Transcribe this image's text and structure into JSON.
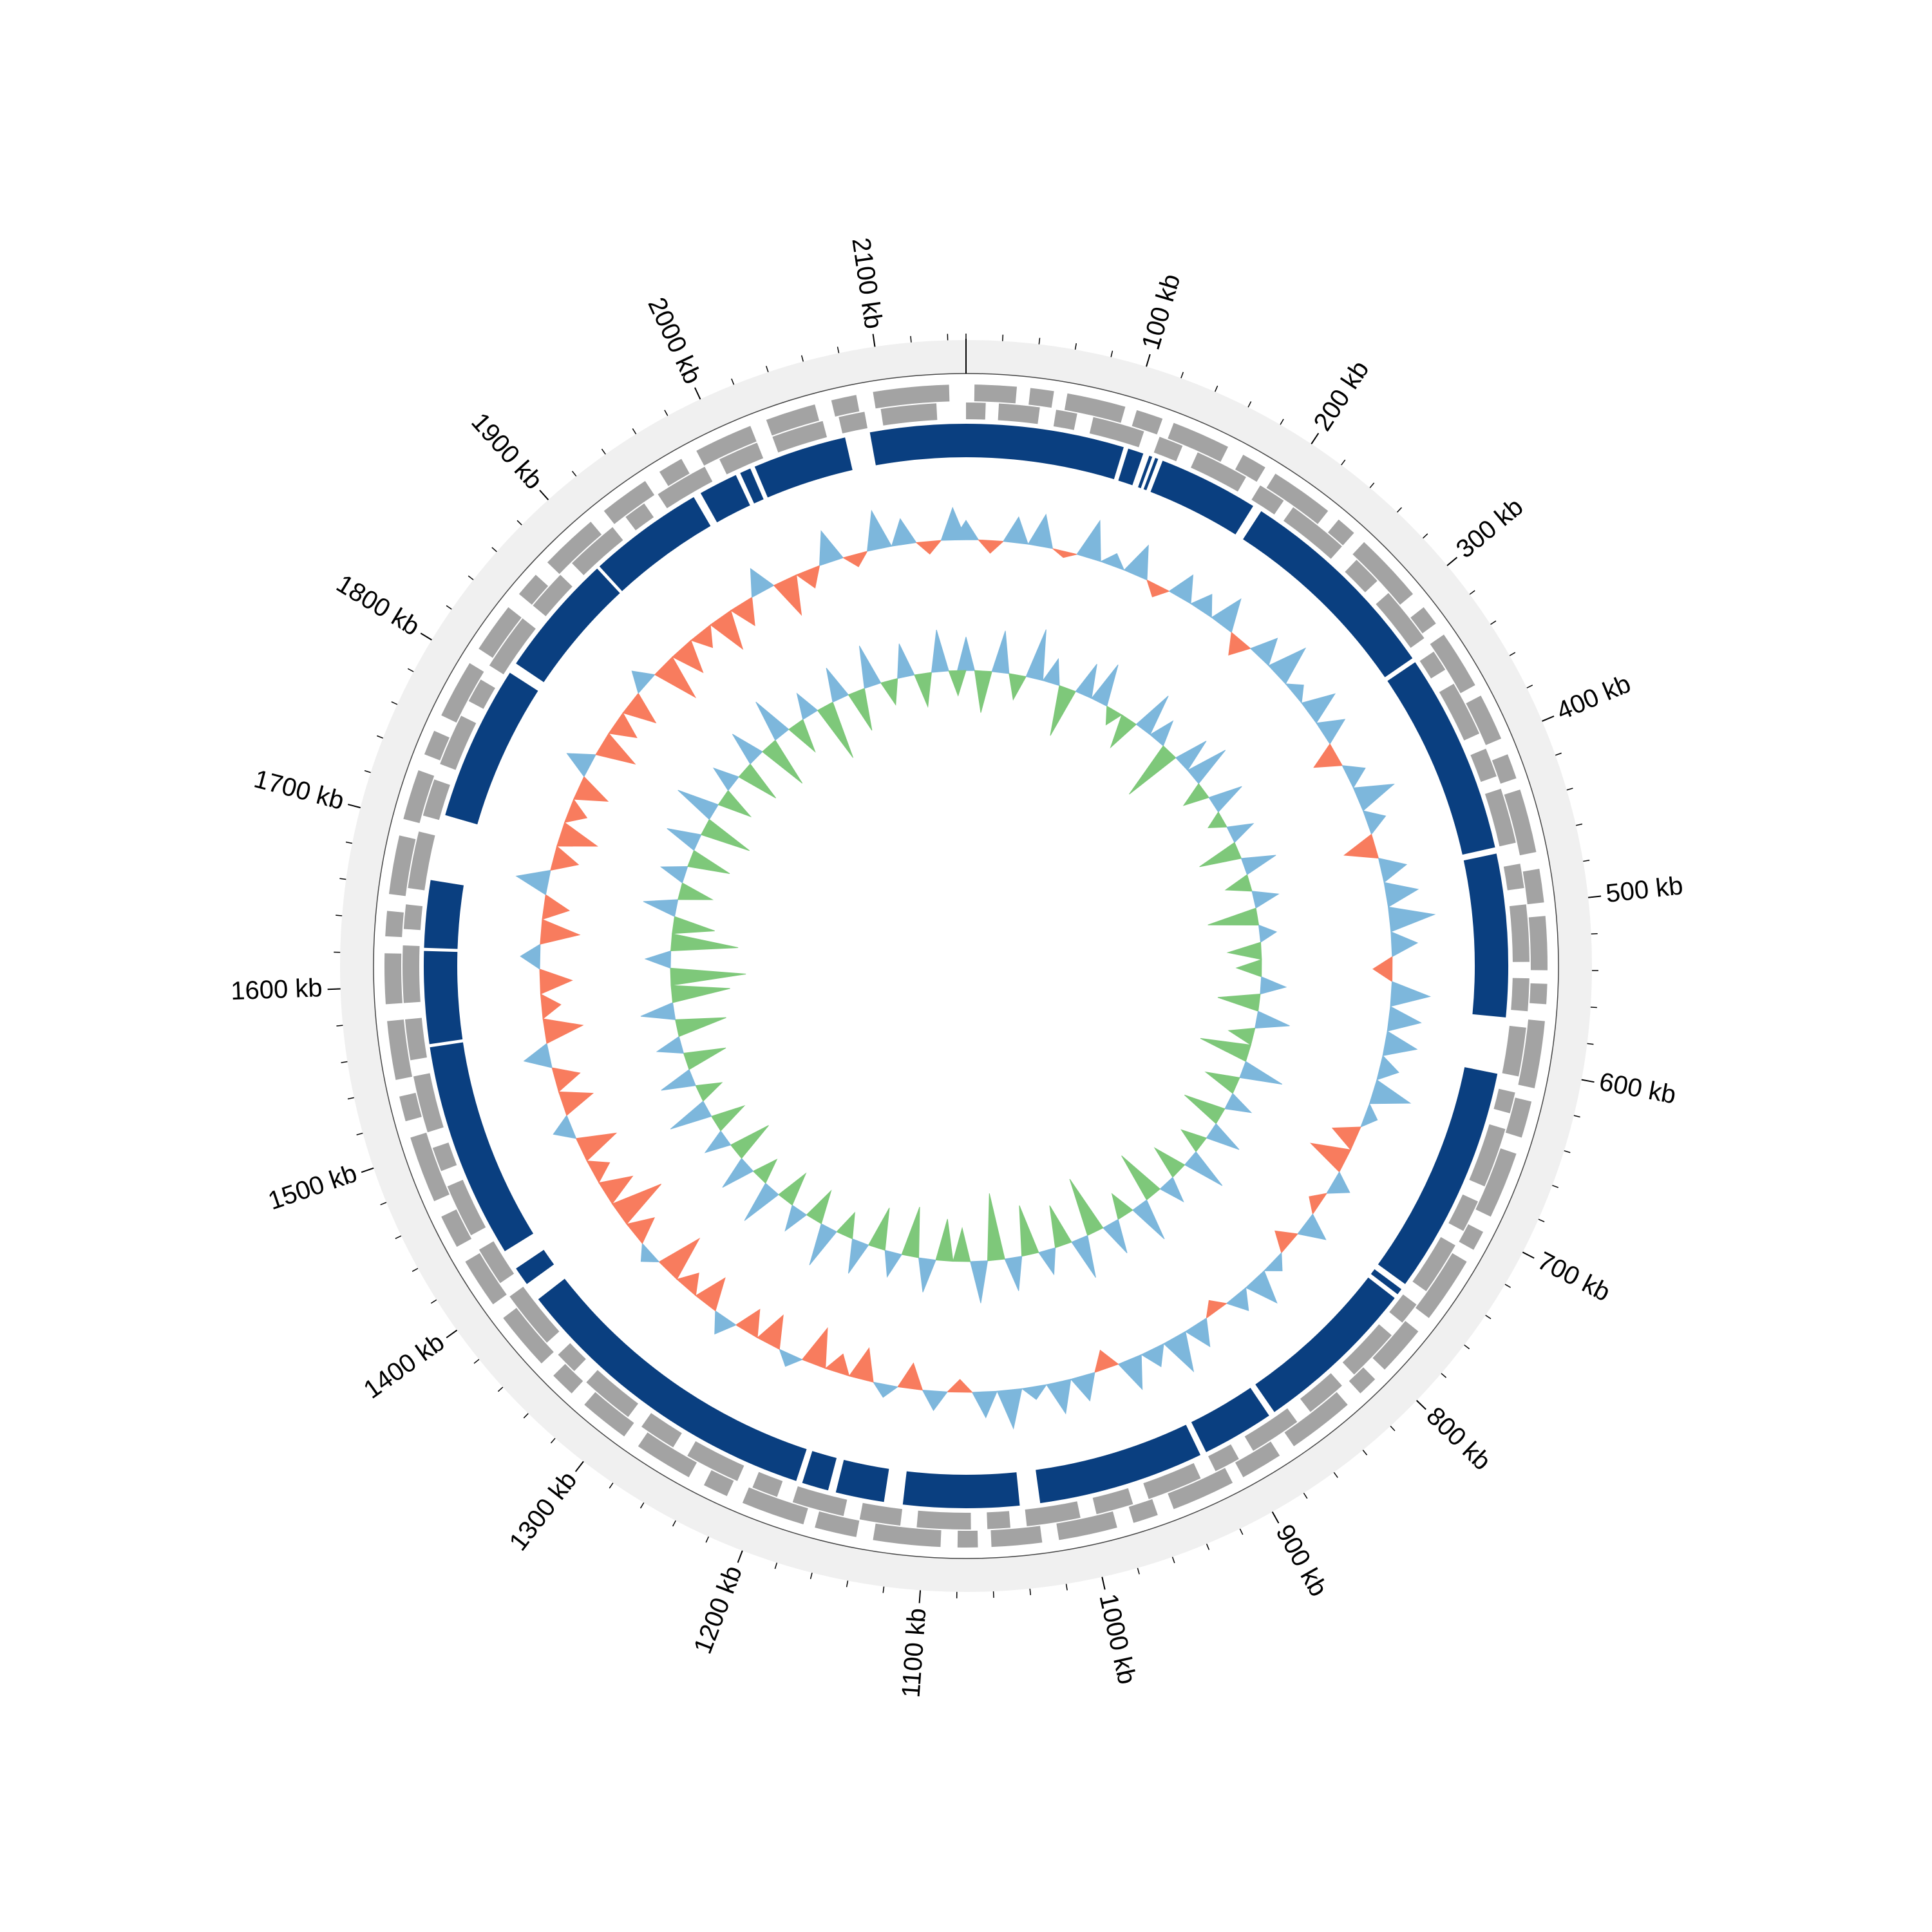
{
  "chart_data": {
    "type": "circular-genome",
    "xlim": [
      0,
      2150
    ],
    "xticks": [
      {
        "value": 100,
        "label": "100 kb"
      },
      {
        "value": 200,
        "label": "200 kb"
      },
      {
        "value": 300,
        "label": "300 kb"
      },
      {
        "value": 400,
        "label": "400 kb"
      },
      {
        "value": 500,
        "label": "500 kb"
      },
      {
        "value": 600,
        "label": "600 kb"
      },
      {
        "value": 700,
        "label": "700 kb"
      },
      {
        "value": 800,
        "label": "800 kb"
      },
      {
        "value": 900,
        "label": "900 kb"
      },
      {
        "value": 1000,
        "label": "1000 kb"
      },
      {
        "value": 1100,
        "label": "1100 kb"
      },
      {
        "value": 1200,
        "label": "1200 kb"
      },
      {
        "value": 1300,
        "label": "1300 kb"
      },
      {
        "value": 1400,
        "label": "1400 kb"
      },
      {
        "value": 1500,
        "label": "1500 kb"
      },
      {
        "value": 1600,
        "label": "1600 kb"
      },
      {
        "value": 1700,
        "label": "1700 kb"
      },
      {
        "value": 1800,
        "label": "1800 kb"
      },
      {
        "value": 1900,
        "label": "1900 kb"
      },
      {
        "value": 2000,
        "label": "2000 kb"
      },
      {
        "value": 2100,
        "label": "2100 kb"
      }
    ],
    "minor_xticks": [
      0,
      20,
      40,
      60,
      80,
      100,
      120,
      140,
      160,
      180,
      200,
      220,
      240,
      260,
      280,
      300,
      320,
      340,
      360,
      380,
      400,
      420,
      440,
      460,
      480,
      500,
      520,
      540,
      560,
      580,
      600,
      620,
      640,
      660,
      680,
      700,
      720,
      740,
      760,
      780,
      800,
      820,
      840,
      860,
      880,
      900,
      920,
      940,
      960,
      980,
      1000,
      1020,
      1040,
      1060,
      1080,
      1100,
      1120,
      1140,
      1160,
      1180,
      1200,
      1220,
      1240,
      1260,
      1280,
      1300,
      1320,
      1340,
      1360,
      1380,
      1400,
      1420,
      1440,
      1460,
      1480,
      1500,
      1520,
      1540,
      1560,
      1580,
      1600,
      1620,
      1640,
      1660,
      1680,
      1700,
      1720,
      1740,
      1760,
      1780,
      1800,
      1820,
      1840,
      1860,
      1880,
      1900,
      1920,
      1940,
      1960,
      1980,
      2000,
      2020,
      2040,
      2060,
      2080,
      2100,
      2120,
      2140
    ],
    "x": [
      0,
      20,
      40,
      60,
      80,
      100,
      120,
      140,
      160,
      180,
      200,
      220,
      240,
      260,
      280,
      300,
      320,
      340,
      360,
      380,
      400,
      420,
      440,
      460,
      480,
      500,
      520,
      540,
      560,
      580,
      600,
      620,
      640,
      660,
      680,
      700,
      720,
      740,
      760,
      780,
      800,
      820,
      840,
      860,
      880,
      900,
      920,
      940,
      960,
      980,
      1000,
      1020,
      1040,
      1060,
      1080,
      1100,
      1120,
      1140,
      1160,
      1180,
      1200,
      1220,
      1240,
      1260,
      1280,
      1300,
      1320,
      1340,
      1360,
      1380,
      1400,
      1420,
      1440,
      1460,
      1480,
      1500,
      1520,
      1540,
      1560,
      1580,
      1600,
      1620,
      1640,
      1660,
      1680,
      1700,
      1720,
      1740,
      1760,
      1780,
      1800,
      1820,
      1840,
      1860,
      1880,
      1900,
      1920,
      1940,
      1960,
      1980,
      2000,
      2020,
      2040,
      2060,
      2080,
      2100,
      2120,
      2140
    ],
    "tracks": {
      "forward_genes": {
        "color": "#a3a3a3",
        "features": [
          [
            5,
            30
          ],
          [
            38,
            52
          ],
          [
            60,
            95
          ],
          [
            102,
            118
          ],
          [
            125,
            160
          ],
          [
            170,
            185
          ],
          [
            192,
            230
          ],
          [
            238,
            250
          ],
          [
            258,
            300
          ],
          [
            310,
            322
          ],
          [
            330,
            365
          ],
          [
            372,
            400
          ],
          [
            410,
            425
          ],
          [
            432,
            470
          ],
          [
            480,
            500
          ],
          [
            508,
            540
          ],
          [
            548,
            560
          ],
          [
            570,
            610
          ],
          [
            618,
            640
          ],
          [
            650,
            690
          ],
          [
            700,
            712
          ],
          [
            720,
            760
          ],
          [
            770,
            800
          ],
          [
            808,
            820
          ],
          [
            830,
            870
          ],
          [
            880,
            905
          ],
          [
            912,
            950
          ],
          [
            960,
            975
          ],
          [
            985,
            1020
          ],
          [
            1030,
            1060
          ],
          [
            1068,
            1080
          ],
          [
            1090,
            1130
          ],
          [
            1140,
            1165
          ],
          [
            1172,
            1210
          ],
          [
            1220,
            1235
          ],
          [
            1245,
            1280
          ],
          [
            1290,
            1320
          ],
          [
            1330,
            1345
          ],
          [
            1355,
            1390
          ],
          [
            1400,
            1430
          ],
          [
            1440,
            1460
          ],
          [
            1470,
            1510
          ],
          [
            1520,
            1535
          ],
          [
            1545,
            1580
          ],
          [
            1590,
            1620
          ],
          [
            1630,
            1645
          ],
          [
            1655,
            1690
          ],
          [
            1700,
            1730
          ],
          [
            1740,
            1755
          ],
          [
            1765,
            1800
          ],
          [
            1810,
            1840
          ],
          [
            1850,
            1865
          ],
          [
            1875,
            1910
          ],
          [
            1920,
            1950
          ],
          [
            1960,
            1975
          ],
          [
            1985,
            2020
          ],
          [
            2030,
            2060
          ],
          [
            2070,
            2085
          ],
          [
            2095,
            2140
          ]
        ]
      },
      "reverse_genes": {
        "color": "#a3a3a3",
        "features": [
          [
            0,
            12
          ],
          [
            20,
            45
          ],
          [
            55,
            68
          ],
          [
            78,
            110
          ],
          [
            120,
            135
          ],
          [
            145,
            178
          ],
          [
            188,
            205
          ],
          [
            212,
            250
          ],
          [
            262,
            280
          ],
          [
            290,
            325
          ],
          [
            335,
            348
          ],
          [
            358,
            392
          ],
          [
            402,
            420
          ],
          [
            428,
            462
          ],
          [
            475,
            490
          ],
          [
            500,
            535
          ],
          [
            545,
            565
          ],
          [
            575,
            605
          ],
          [
            615,
            628
          ],
          [
            638,
            675
          ],
          [
            685,
            705
          ],
          [
            715,
            748
          ],
          [
            758,
            772
          ],
          [
            782,
            815
          ],
          [
            825,
            850
          ],
          [
            860,
            892
          ],
          [
            902,
            918
          ],
          [
            928,
            962
          ],
          [
            972,
            995
          ],
          [
            1005,
            1038
          ],
          [
            1048,
            1062
          ],
          [
            1072,
            1105
          ],
          [
            1115,
            1140
          ],
          [
            1150,
            1182
          ],
          [
            1192,
            1208
          ],
          [
            1218,
            1252
          ],
          [
            1262,
            1285
          ],
          [
            1295,
            1328
          ],
          [
            1338,
            1352
          ],
          [
            1362,
            1398
          ],
          [
            1408,
            1432
          ],
          [
            1442,
            1475
          ],
          [
            1485,
            1500
          ],
          [
            1510,
            1545
          ],
          [
            1555,
            1580
          ],
          [
            1590,
            1625
          ],
          [
            1635,
            1650
          ],
          [
            1660,
            1695
          ],
          [
            1705,
            1728
          ],
          [
            1738,
            1770
          ],
          [
            1780,
            1795
          ],
          [
            1805,
            1840
          ],
          [
            1850,
            1875
          ],
          [
            1885,
            1918
          ],
          [
            1928,
            1942
          ],
          [
            1952,
            1985
          ],
          [
            1995,
            2020
          ],
          [
            2030,
            2062
          ],
          [
            2072,
            2088
          ],
          [
            2098,
            2132
          ]
        ]
      },
      "regions": {
        "color": "#0a3f80",
        "features": [
          [
            0,
            101
          ],
          [
            104,
            114
          ],
          [
            118,
            120
          ],
          [
            122,
            124
          ],
          [
            127,
            191
          ],
          [
            197,
            331
          ],
          [
            334,
            462
          ],
          [
            466,
            570
          ],
          [
            606,
            752
          ],
          [
            756,
            760
          ],
          [
            763,
            868
          ],
          [
            872,
            918
          ],
          [
            922,
            1028
          ],
          [
            1041,
            1115
          ],
          [
            1127,
            1158
          ],
          [
            1163,
            1180
          ],
          [
            1184,
            1386
          ],
          [
            1398,
            1410
          ],
          [
            1423,
            1561
          ],
          [
            1563,
            1622
          ],
          [
            1624,
            1667
          ],
          [
            1709,
            1808
          ],
          [
            1815,
            1894
          ],
          [
            1896,
            1970
          ],
          [
            1975,
            2000
          ],
          [
            2003,
            2010
          ],
          [
            2013,
            2073
          ],
          [
            2089,
            2150
          ]
        ]
      },
      "gc_content": {
        "ylim": [
          -10,
          10
        ],
        "positive_color": "#7db7dc",
        "negative_color": "#f87c5e",
        "values": [
          3,
          -2,
          4,
          5,
          -1,
          6,
          2,
          5,
          -2,
          4,
          3,
          5,
          -3,
          4,
          6,
          2,
          5,
          4,
          -4,
          3,
          6,
          3,
          -5,
          4,
          5,
          7,
          4,
          -3,
          6,
          5,
          5,
          3,
          6,
          2,
          -4,
          -6,
          3,
          -2,
          4,
          -3,
          2,
          5,
          3,
          -2,
          4,
          6,
          3,
          5,
          -3,
          4,
          5,
          2,
          6,
          4,
          -2,
          3,
          -4,
          2,
          -5,
          -3,
          -6,
          2,
          -5,
          -4,
          3,
          -5,
          -3,
          -7,
          2,
          -4,
          -8,
          -5,
          -3,
          -6,
          3,
          -5,
          -4,
          4,
          -6,
          -3,
          -5,
          3,
          -6,
          -4,
          5,
          -4,
          -6,
          -3,
          -5,
          4,
          -6,
          -4,
          -5,
          3,
          -7,
          -5,
          -3,
          -6,
          -4,
          4,
          -6,
          -3,
          5,
          -2,
          6,
          4,
          -2,
          5
        ]
      },
      "gc_skew": {
        "ylim": [
          -10,
          10
        ],
        "positive_color": "#7db7dc",
        "negative_color": "#7ec87a",
        "values": [
          4,
          -5,
          5,
          -3,
          6,
          3,
          -6,
          4,
          5,
          -2,
          -4,
          5,
          3,
          -7,
          4,
          5,
          -3,
          4,
          -2,
          3,
          -5,
          4,
          -3,
          3,
          -6,
          2,
          -4,
          -3,
          3,
          -5,
          4,
          -3,
          -6,
          5,
          -4,
          3,
          -5,
          4,
          -3,
          5,
          -4,
          3,
          -6,
          5,
          -3,
          4,
          -7,
          5,
          -5,
          3,
          -6,
          4,
          -8,
          5,
          -4,
          -5,
          4,
          -6,
          3,
          -5,
          4,
          -3,
          5,
          -4,
          3,
          -4,
          5,
          -3,
          4,
          -5,
          3,
          -4,
          5,
          -3,
          4,
          -5,
          3,
          -6,
          4,
          -7,
          -9,
          3,
          -8,
          -5,
          4,
          -4,
          3,
          -5,
          4,
          -6,
          5,
          -4,
          3,
          -5,
          4,
          -6,
          5,
          -4,
          3,
          -7,
          4,
          -5,
          5,
          -3,
          4,
          -4,
          5,
          -3
        ]
      }
    }
  }
}
